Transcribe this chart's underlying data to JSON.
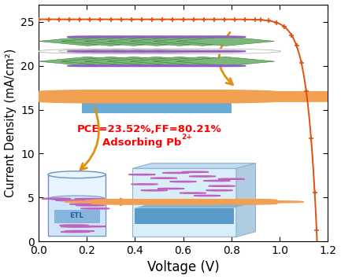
{
  "xlabel": "Voltage (V)",
  "ylabel": "Current Density (mA/cm²)",
  "xlim": [
    0.0,
    1.2
  ],
  "ylim": [
    0,
    27
  ],
  "xticks": [
    0.0,
    0.2,
    0.4,
    0.6,
    0.8,
    1.0,
    1.2
  ],
  "yticks": [
    0,
    5,
    10,
    15,
    20,
    25
  ],
  "line_color": "#E05010",
  "marker_color": "#E05010",
  "Jsc": 25.3,
  "Voc": 1.155,
  "n_ideality": 1.55,
  "annotation_line1": "PCE=23.52%,FF=80.21%",
  "annotation_line2": "Adsorbing Pb",
  "annotation_superscript": "2+",
  "annotation_color": "red",
  "arrow_color": "#E09010",
  "bg_color": "#ffffff"
}
